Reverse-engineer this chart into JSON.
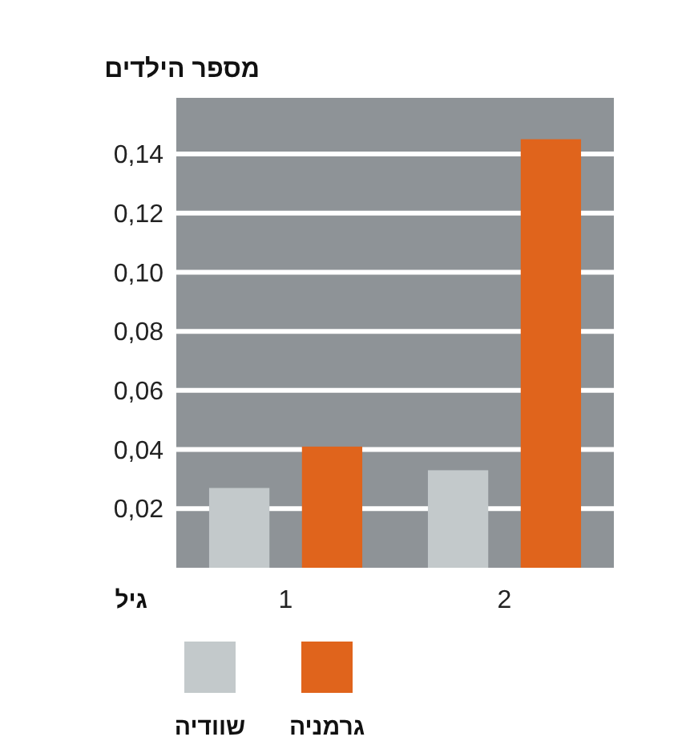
{
  "chart_data": {
    "type": "bar",
    "ylabel": "מספר הילדים",
    "xlabel": "גיל",
    "categories": [
      "1",
      "2"
    ],
    "series": [
      {
        "name": "שוודיה",
        "color": "#c3c9cb",
        "values": [
          0.027,
          0.033
        ]
      },
      {
        "name": "גרמניה",
        "color": "#e0641c",
        "values": [
          0.041,
          0.145
        ]
      }
    ],
    "ylim": [
      0,
      0.159
    ],
    "yticks": [
      {
        "value": 0.02,
        "label": "0,02"
      },
      {
        "value": 0.04,
        "label": "0,04"
      },
      {
        "value": 0.06,
        "label": "0,06"
      },
      {
        "value": 0.08,
        "label": "0,08"
      },
      {
        "value": 0.1,
        "label": "0,10"
      },
      {
        "value": 0.12,
        "label": "0,12"
      },
      {
        "value": 0.14,
        "label": "0,14"
      }
    ],
    "grid": "y",
    "legend": "bottom"
  }
}
